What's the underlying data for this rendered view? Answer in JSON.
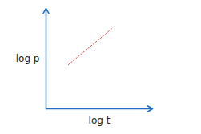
{
  "chart_data": {
    "type": "line",
    "x_label": "log t",
    "y_label": "log p",
    "x": [
      2.1,
      6.2
    ],
    "values": [
      4.4,
      8.0
    ],
    "color": "#d9534f",
    "line_style": "dotted",
    "xlim": [
      0,
      10
    ],
    "ylim": [
      0,
      10
    ],
    "xticks": [],
    "yticks": [],
    "tick_labels": false,
    "grid": false
  }
}
